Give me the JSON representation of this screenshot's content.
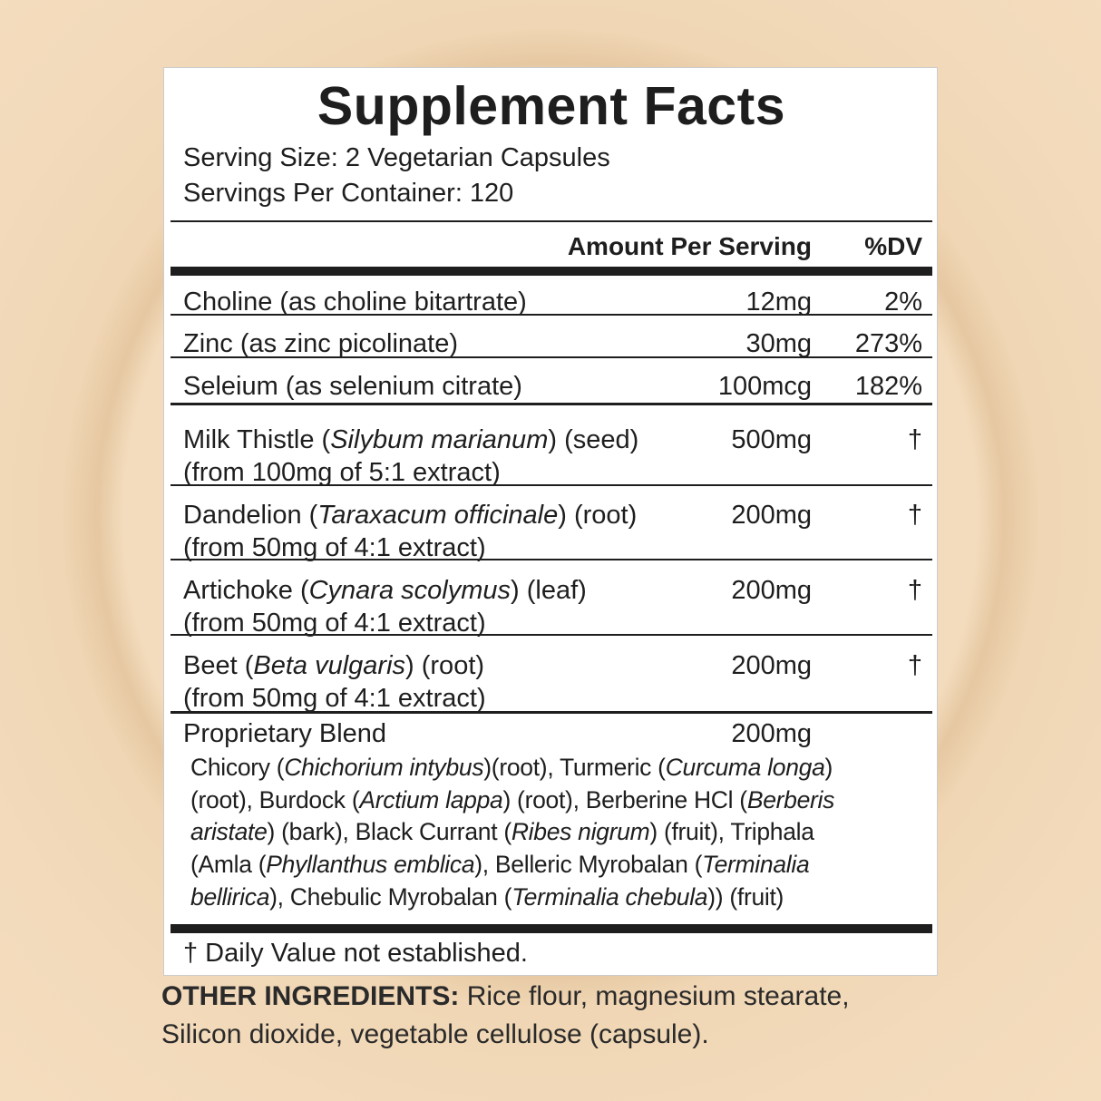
{
  "title": "Supplement Facts",
  "serving_size": "Serving Size: 2 Vegetarian Capsules",
  "servings_per_container": "Servings Per Container: 120",
  "header": {
    "amount": "Amount Per Serving",
    "dv": "%DV"
  },
  "rows": [
    {
      "lines": [
        [
          {
            "t": "Choline (as choline bitartrate)"
          }
        ]
      ],
      "amount": "12mg",
      "dv": "2%"
    },
    {
      "lines": [
        [
          {
            "t": "Zinc (as zinc picolinate)"
          }
        ]
      ],
      "amount": "30mg",
      "dv": "273%"
    },
    {
      "lines": [
        [
          {
            "t": "Seleium (as selenium citrate)"
          }
        ]
      ],
      "amount": "100mcg",
      "dv": "182%"
    },
    {
      "lines": [
        [
          {
            "t": "Milk Thistle ("
          },
          {
            "t": "Silybum marianum",
            "i": true
          },
          {
            "t": ") (seed)"
          }
        ],
        [
          {
            "t": "(from 100mg of 5:1 extract)"
          }
        ]
      ],
      "amount": "500mg",
      "dv": "†"
    },
    {
      "lines": [
        [
          {
            "t": "Dandelion ("
          },
          {
            "t": "Taraxacum officinale",
            "i": true
          },
          {
            "t": ") (root)"
          }
        ],
        [
          {
            "t": "(from 50mg of 4:1 extract)"
          }
        ]
      ],
      "amount": "200mg",
      "dv": "†"
    },
    {
      "lines": [
        [
          {
            "t": "Artichoke ("
          },
          {
            "t": "Cynara scolymus",
            "i": true
          },
          {
            "t": ") (leaf)"
          }
        ],
        [
          {
            "t": "(from 50mg of 4:1 extract)"
          }
        ]
      ],
      "amount": "200mg",
      "dv": "†"
    },
    {
      "lines": [
        [
          {
            "t": "Beet ("
          },
          {
            "t": "Beta vulgaris",
            "i": true
          },
          {
            "t": ") (root)"
          }
        ],
        [
          {
            "t": "(from 50mg of 4:1 extract)"
          }
        ]
      ],
      "amount": "200mg",
      "dv": "†"
    }
  ],
  "blend": {
    "name": "Proprietary Blend",
    "amount": "200mg",
    "lines": [
      [
        {
          "t": "Chicory ("
        },
        {
          "t": "Chichorium intybus",
          "i": true
        },
        {
          "t": ")(root), Turmeric ("
        },
        {
          "t": "Curcuma  longa",
          "i": true
        },
        {
          "t": ")"
        }
      ],
      [
        {
          "t": "(root), Burdock ("
        },
        {
          "t": "Arctium lappa",
          "i": true
        },
        {
          "t": ") (root), Berberine HCl ("
        },
        {
          "t": "Berberis",
          "i": true
        }
      ],
      [
        {
          "t": "aristate",
          "i": true
        },
        {
          "t": ") (bark), Black Currant ("
        },
        {
          "t": "Ribes nigrum",
          "i": true
        },
        {
          "t": ") (fruit), Triphala"
        }
      ],
      [
        {
          "t": "(Amla ("
        },
        {
          "t": "Phyllanthus emblica",
          "i": true
        },
        {
          "t": "), Belleric Myrobalan ("
        },
        {
          "t": "Terminalia",
          "i": true
        }
      ],
      [
        {
          "t": "bellirica",
          "i": true
        },
        {
          "t": "), Chebulic Myrobalan ("
        },
        {
          "t": "Terminalia chebula",
          "i": true
        },
        {
          "t": ")) (fruit)"
        }
      ]
    ]
  },
  "footnote": "† Daily Value not established.",
  "other_ingredients": {
    "label": "OTHER INGREDIENTS:",
    "line1": " Rice flour, magnesium stearate,",
    "line2": "Silicon dioxide, vegetable cellulose (capsule)."
  }
}
